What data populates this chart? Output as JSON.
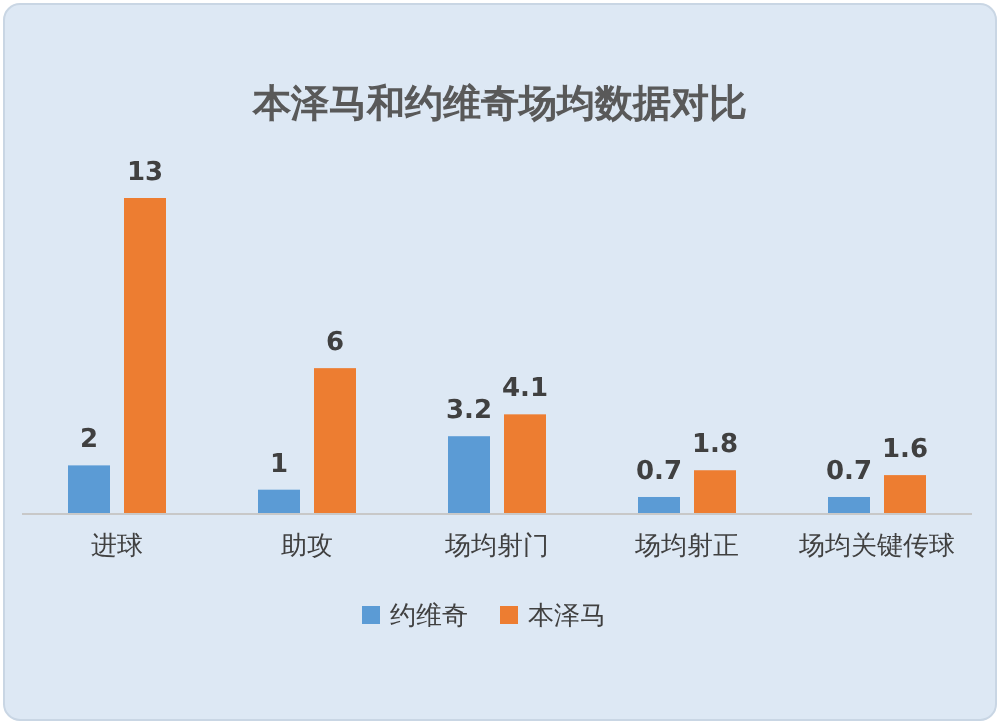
{
  "chart_data": {
    "type": "bar",
    "title": "本泽马和约维奇场均数据对比",
    "categories": [
      "进球",
      "助攻",
      "场均射门",
      "场均射正",
      "场均关键传球"
    ],
    "series": [
      {
        "name": "约维奇",
        "color": "#5b9bd5",
        "values": [
          2,
          1,
          3.2,
          0.7,
          0.7
        ]
      },
      {
        "name": "本泽马",
        "color": "#ed7d31",
        "values": [
          13,
          6,
          4.1,
          1.8,
          1.6
        ]
      }
    ],
    "data_labels": true,
    "legend": "bottom"
  }
}
